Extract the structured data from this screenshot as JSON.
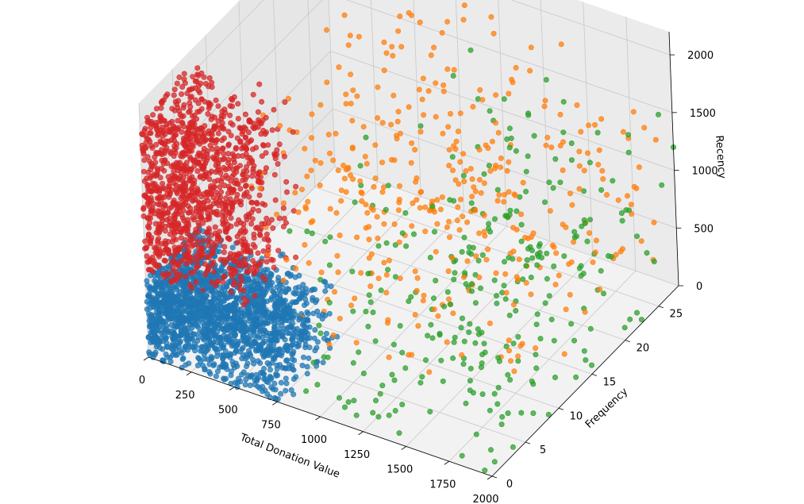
{
  "chart_data": {
    "type": "scatter",
    "subtype": "3d-scatter",
    "title": "",
    "xlabel": "Total Donation Value",
    "ylabel": "Frequency",
    "zlabel": "Recency",
    "xlim": [
      0,
      2000
    ],
    "ylim": [
      0,
      28
    ],
    "zlim": [
      0,
      2200
    ],
    "xticks": [
      0,
      250,
      500,
      750,
      1000,
      1250,
      1500,
      1750,
      2000
    ],
    "yticks": [
      0,
      5,
      10,
      15,
      20,
      25
    ],
    "zticks": [
      0,
      500,
      1000,
      1500,
      2000
    ],
    "grid": true,
    "series": [
      {
        "color": "#1f77b4",
        "count": 1800,
        "x_range": [
          0,
          800
        ],
        "y_range": [
          0,
          8
        ],
        "z_range": [
          0,
          700
        ]
      },
      {
        "color": "#d62728",
        "count": 1200,
        "x_range": [
          0,
          600
        ],
        "y_range": [
          0,
          8
        ],
        "z_range": [
          700,
          2100
        ]
      },
      {
        "color": "#ff7f0e",
        "count": 400,
        "x_range": [
          400,
          2000
        ],
        "y_range": [
          5,
          28
        ],
        "z_range": [
          200,
          2100
        ]
      },
      {
        "color": "#2ca02c",
        "count": 300,
        "x_range": [
          800,
          2000
        ],
        "y_range": [
          0,
          28
        ],
        "z_range": [
          0,
          1700
        ]
      }
    ],
    "outliers": [
      {
        "x": 2000,
        "y": 26,
        "z": 1600,
        "color": "#2ca02c"
      },
      {
        "x": 2000,
        "y": 28,
        "z": 1200,
        "color": "#2ca02c"
      }
    ]
  }
}
